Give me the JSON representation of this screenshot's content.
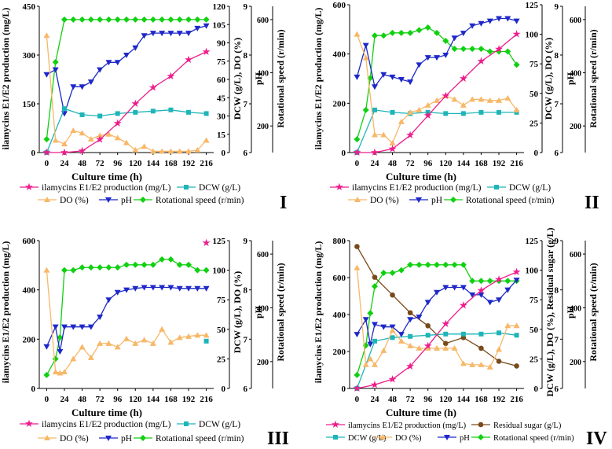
{
  "colors": {
    "ila": "#ee1c8c",
    "dcw": "#1fb5b8",
    "do": "#f7b868",
    "ph": "#1e28c8",
    "rs": "#11d011",
    "sugar": "#7a4a1c",
    "axis": "#000000"
  },
  "legend_labels": {
    "ila": "ilamycins E1/E2 production (mg/L)",
    "dcw": "DCW (g/L)",
    "do": "DO (%)",
    "ph": "pH",
    "rs": "Rotational speed (r/min)",
    "sugar": "Residual sugar (g/L)"
  },
  "chart_data": [
    {
      "panel_label": "I",
      "type": "line",
      "xlabel": "Culture time (h)",
      "x_ticks": [
        "0",
        "24",
        "48",
        "72",
        "96",
        "120",
        "144",
        "168",
        "192",
        "216"
      ],
      "xlim": [
        -10,
        226
      ],
      "left_axis": {
        "label": "ilamycins E1/E2 production (mg/L)",
        "ylim": [
          0,
          450
        ],
        "ticks": [
          "0",
          "150",
          "300",
          "450"
        ]
      },
      "axis2": {
        "label": "DCW (g/L), DO (%)",
        "ylim": [
          0,
          120
        ],
        "ticks": [
          "0",
          "15",
          "30",
          "45",
          "60",
          "75",
          "90",
          "105",
          "120"
        ]
      },
      "ph_axis": {
        "label": "pH",
        "ylim": [
          6,
          9
        ],
        "ticks": [
          "6",
          "7",
          "8",
          "9"
        ]
      },
      "rs_axis": {
        "label": "Rotational speed (r/min)",
        "ylim": [
          100,
          650
        ],
        "ticks": [
          "200",
          "400",
          "600"
        ]
      },
      "series": [
        {
          "key": "rs",
          "name": "Rotational speed (r/min)",
          "marker": "diamond",
          "axis": "rs",
          "x": [
            0,
            12,
            24,
            36,
            48,
            60,
            72,
            84,
            96,
            108,
            120,
            132,
            144,
            156,
            168,
            180,
            192,
            204,
            216
          ],
          "values": [
            150,
            440,
            600,
            600,
            600,
            600,
            600,
            600,
            600,
            600,
            600,
            600,
            600,
            600,
            600,
            600,
            600,
            600,
            600
          ]
        },
        {
          "key": "ph",
          "name": "pH",
          "marker": "tri_down",
          "axis": "ph",
          "x": [
            0,
            12,
            24,
            36,
            48,
            60,
            72,
            84,
            96,
            108,
            120,
            132,
            144,
            156,
            168,
            180,
            192,
            204,
            216
          ],
          "values": [
            7.6,
            7.7,
            6.8,
            7.35,
            7.35,
            7.45,
            7.7,
            7.85,
            7.85,
            8.0,
            8.15,
            8.4,
            8.45,
            8.45,
            8.45,
            8.45,
            8.45,
            8.55,
            8.6
          ]
        },
        {
          "key": "dcw",
          "name": "DCW (g/L)",
          "marker": "square",
          "axis": "axis2",
          "x": [
            0,
            24,
            48,
            72,
            96,
            120,
            144,
            168,
            192,
            216
          ],
          "values": [
            0,
            36,
            31,
            30,
            32,
            33,
            34,
            35,
            33,
            32
          ]
        },
        {
          "key": "do",
          "name": "DO (%)",
          "marker": "tri_up",
          "axis": "axis2",
          "x": [
            0,
            12,
            24,
            36,
            48,
            60,
            72,
            84,
            96,
            108,
            120,
            132,
            144,
            156,
            168,
            180,
            192,
            204,
            216
          ],
          "values": [
            96,
            10,
            7,
            18,
            16,
            11,
            14,
            15,
            12,
            8,
            2,
            5,
            1,
            1,
            1,
            1,
            1,
            2,
            10
          ]
        },
        {
          "key": "ila",
          "name": "ilamycins E1/E2 production (mg/L)",
          "marker": "star",
          "axis": "left",
          "x": [
            0,
            24,
            48,
            72,
            96,
            120,
            144,
            168,
            192,
            216
          ],
          "values": [
            0,
            0,
            5,
            40,
            90,
            150,
            200,
            235,
            285,
            310
          ]
        }
      ]
    },
    {
      "panel_label": "II",
      "type": "line",
      "xlabel": "Culture time (h)",
      "x_ticks": [
        "0",
        "24",
        "48",
        "72",
        "96",
        "120",
        "144",
        "168",
        "192",
        "216"
      ],
      "xlim": [
        -10,
        226
      ],
      "left_axis": {
        "label": "ilamycins E1/E2 production (mg/L)",
        "ylim": [
          0,
          600
        ],
        "ticks": [
          "0",
          "200",
          "400",
          "600"
        ]
      },
      "axis2": {
        "label": "DCW (g/L), DO (%)",
        "ylim": [
          0,
          125
        ],
        "ticks": [
          "0",
          "25",
          "50",
          "75",
          "100",
          "125"
        ]
      },
      "ph_axis": {
        "label": "pH",
        "ylim": [
          6,
          9
        ],
        "ticks": [
          "6",
          "7",
          "8",
          "9"
        ]
      },
      "rs_axis": {
        "label": "Rotational speed (r/min)",
        "ylim": [
          100,
          650
        ],
        "ticks": [
          "200",
          "400",
          "600"
        ]
      },
      "series": [
        {
          "key": "rs",
          "name": "Rotational speed (r/min)",
          "marker": "diamond",
          "axis": "rs",
          "x": [
            0,
            12,
            18,
            24,
            36,
            48,
            60,
            72,
            84,
            96,
            108,
            120,
            132,
            144,
            156,
            168,
            180,
            192,
            204,
            216
          ],
          "values": [
            150,
            260,
            380,
            540,
            540,
            550,
            550,
            550,
            560,
            570,
            550,
            520,
            490,
            490,
            490,
            490,
            480,
            480,
            480,
            430
          ]
        },
        {
          "key": "ph",
          "name": "pH",
          "marker": "tri_down",
          "axis": "ph",
          "x": [
            0,
            12,
            24,
            36,
            48,
            60,
            72,
            84,
            96,
            108,
            120,
            132,
            144,
            156,
            168,
            180,
            192,
            204,
            216
          ],
          "values": [
            7.55,
            8.2,
            7.35,
            7.6,
            7.55,
            7.5,
            7.45,
            7.8,
            7.95,
            7.95,
            8.0,
            8.35,
            8.45,
            8.6,
            8.65,
            8.7,
            8.75,
            8.75,
            8.7
          ]
        },
        {
          "key": "dcw",
          "name": "DCW (g/L)",
          "marker": "square",
          "axis": "axis2",
          "x": [
            0,
            24,
            48,
            72,
            96,
            120,
            144,
            168,
            192,
            216
          ],
          "values": [
            0,
            36,
            34,
            33,
            34,
            33,
            33,
            34,
            34,
            34
          ]
        },
        {
          "key": "do",
          "name": "DO (%)",
          "marker": "tri_up",
          "axis": "axis2",
          "x": [
            0,
            12,
            24,
            36,
            48,
            60,
            72,
            84,
            96,
            108,
            120,
            132,
            144,
            156,
            168,
            180,
            192,
            204,
            216
          ],
          "values": [
            100,
            80,
            15,
            15,
            8,
            26,
            34,
            36,
            40,
            44,
            48,
            45,
            40,
            45,
            45,
            44,
            44,
            46,
            36
          ]
        },
        {
          "key": "ila",
          "name": "ilamycins E1/E2 production (mg/L)",
          "marker": "star",
          "axis": "left",
          "x": [
            0,
            24,
            48,
            72,
            96,
            120,
            144,
            168,
            192,
            216
          ],
          "values": [
            0,
            0,
            15,
            70,
            150,
            230,
            300,
            370,
            420,
            480
          ]
        }
      ]
    },
    {
      "panel_label": "III",
      "type": "line",
      "xlabel": "Culture time (h)",
      "x_ticks": [
        "0",
        "24",
        "48",
        "72",
        "96",
        "120",
        "144",
        "168",
        "192",
        "216"
      ],
      "xlim": [
        -10,
        226
      ],
      "left_axis": {
        "label": "ilamycins E1/E2 production (mg/L)",
        "ylim": [
          0,
          600
        ],
        "ticks": [
          "0",
          "200",
          "400",
          "600"
        ]
      },
      "axis2": {
        "label": "DCW (g/L), DO (%)",
        "ylim": [
          0,
          125
        ],
        "ticks": [
          "0",
          "25",
          "50",
          "75",
          "100",
          "125"
        ]
      },
      "ph_axis": {
        "label": "pH",
        "ylim": [
          6,
          9
        ],
        "ticks": [
          "6",
          "7",
          "8",
          "9"
        ]
      },
      "rs_axis": {
        "label": "Rotational speed (r/min)",
        "ylim": [
          100,
          650
        ],
        "ticks": [
          "200",
          "400",
          "600"
        ]
      },
      "series": [
        {
          "key": "rs",
          "name": "Rotational speed (r/min)",
          "marker": "diamond",
          "axis": "rs",
          "x": [
            0,
            12,
            18,
            24,
            36,
            48,
            60,
            72,
            84,
            96,
            108,
            120,
            132,
            144,
            156,
            168,
            180,
            192,
            204,
            216
          ],
          "values": [
            150,
            210,
            290,
            540,
            540,
            550,
            550,
            550,
            550,
            550,
            560,
            560,
            560,
            560,
            580,
            580,
            560,
            560,
            540,
            540
          ]
        },
        {
          "key": "ph",
          "name": "pH",
          "marker": "tri_down",
          "axis": "ph",
          "x": [
            0,
            12,
            18,
            24,
            36,
            48,
            60,
            72,
            84,
            96,
            108,
            120,
            132,
            144,
            156,
            168,
            180,
            192,
            204,
            216
          ],
          "values": [
            6.85,
            7.25,
            6.75,
            7.25,
            7.25,
            7.25,
            7.25,
            7.45,
            7.8,
            7.95,
            8.0,
            8.03,
            8.05,
            8.05,
            8.05,
            8.05,
            8.03,
            8.03,
            8.03,
            8.03
          ]
        },
        {
          "key": "dcw",
          "name": "DCW (g/L)",
          "marker": "square",
          "axis": "axis2",
          "x": [
            216
          ],
          "values": [
            40
          ]
        },
        {
          "key": "do",
          "name": "DO (%)",
          "marker": "tri_up",
          "axis": "axis2",
          "x": [
            0,
            12,
            18,
            24,
            36,
            48,
            60,
            72,
            84,
            96,
            108,
            120,
            132,
            144,
            156,
            168,
            180,
            192,
            204,
            216
          ],
          "values": [
            100,
            14,
            13,
            14,
            25,
            35,
            26,
            38,
            38,
            35,
            42,
            38,
            41,
            38,
            50,
            39,
            43,
            44,
            45,
            45
          ]
        },
        {
          "key": "ila",
          "name": "ilamycins E1/E2 production (mg/L)",
          "marker": "star",
          "axis": "left",
          "x": [
            216
          ],
          "values": [
            590
          ]
        }
      ]
    },
    {
      "panel_label": "IV",
      "type": "line",
      "xlabel": "Culture time (h)",
      "x_ticks": [
        "0",
        "24",
        "48",
        "72",
        "96",
        "120",
        "144",
        "168",
        "192",
        "216"
      ],
      "xlim": [
        -10,
        226
      ],
      "left_axis": {
        "label": "ilamycins E1/E2 production (mg/L)",
        "ylim": [
          0,
          800
        ],
        "ticks": [
          "0",
          "200",
          "400",
          "600",
          "800"
        ]
      },
      "axis2": {
        "label": "DCW (g/L), DO (%), Residual sugar (g/L)",
        "ylim": [
          0,
          125
        ],
        "ticks": [
          "0",
          "25",
          "50",
          "75",
          "100",
          "125"
        ]
      },
      "ph_axis": {
        "label": "pH",
        "ylim": [
          6,
          9
        ],
        "ticks": [
          "6",
          "7",
          "8",
          "9"
        ]
      },
      "rs_axis": {
        "label": "Rotational speed (r/min)",
        "ylim": [
          100,
          650
        ],
        "ticks": [
          "200",
          "400",
          "600"
        ]
      },
      "series": [
        {
          "key": "rs",
          "name": "Rotational speed (r/min)",
          "marker": "diamond",
          "axis": "rs",
          "x": [
            0,
            12,
            18,
            24,
            36,
            48,
            60,
            72,
            84,
            96,
            108,
            120,
            132,
            144,
            156,
            168,
            180,
            192,
            204,
            216
          ],
          "values": [
            150,
            260,
            380,
            480,
            530,
            530,
            540,
            560,
            560,
            560,
            560,
            560,
            560,
            560,
            500,
            500,
            500,
            500,
            500,
            500
          ]
        },
        {
          "key": "sugar",
          "name": "Residual sugar (g/L)",
          "marker": "circle",
          "axis": "axis2",
          "x": [
            0,
            24,
            48,
            72,
            96,
            120,
            144,
            168,
            192,
            216
          ],
          "values": [
            120,
            94,
            79,
            64,
            53,
            38,
            43,
            34,
            23,
            19
          ]
        },
        {
          "key": "ph",
          "name": "pH",
          "marker": "tri_down",
          "axis": "ph",
          "x": [
            0,
            12,
            18,
            24,
            36,
            48,
            60,
            72,
            84,
            96,
            108,
            120,
            132,
            144,
            156,
            168,
            180,
            192,
            204,
            216
          ],
          "values": [
            7.1,
            7.4,
            6.9,
            7.3,
            7.25,
            7.25,
            7.1,
            7.4,
            7.45,
            7.75,
            7.95,
            8.05,
            8.05,
            8.05,
            7.9,
            7.9,
            7.75,
            7.8,
            8.0,
            8.2
          ]
        },
        {
          "key": "dcw",
          "name": "DCW (g/L)",
          "marker": "square",
          "axis": "axis2",
          "x": [
            0,
            24,
            48,
            72,
            96,
            120,
            144,
            168,
            192,
            216
          ],
          "values": [
            0,
            40,
            43,
            44,
            45,
            46,
            46,
            46,
            47,
            45
          ]
        },
        {
          "key": "do",
          "name": "DO (%)",
          "marker": "tri_up",
          "axis": "axis2",
          "x": [
            0,
            12,
            18,
            24,
            36,
            48,
            60,
            72,
            84,
            96,
            108,
            120,
            132,
            144,
            156,
            168,
            180,
            192,
            204,
            216
          ],
          "values": [
            102,
            20,
            25,
            20,
            32,
            49,
            40,
            36,
            34,
            34,
            34,
            34,
            34,
            21,
            20,
            20,
            18,
            33,
            53,
            53
          ]
        },
        {
          "key": "ila",
          "name": "ilamycins E1/E2 production (mg/L)",
          "marker": "star",
          "axis": "left",
          "x": [
            0,
            24,
            48,
            72,
            96,
            120,
            144,
            168,
            192,
            216
          ],
          "values": [
            0,
            20,
            50,
            120,
            230,
            350,
            450,
            530,
            590,
            630
          ]
        }
      ]
    }
  ]
}
